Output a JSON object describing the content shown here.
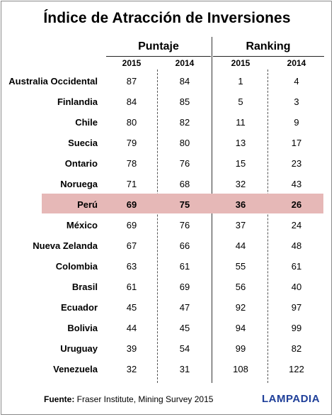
{
  "title": "Índice de Atracción de Inversiones",
  "groups": {
    "score": "Puntaje",
    "ranking": "Ranking"
  },
  "years": {
    "score_2015": "2015",
    "score_2014": "2014",
    "rank_2015": "2015",
    "rank_2014": "2014"
  },
  "rows": [
    {
      "name": "Australia Occidental",
      "s2015": "87",
      "s2014": "84",
      "r2015": "1",
      "r2014": "4"
    },
    {
      "name": "Finlandia",
      "s2015": "84",
      "s2014": "85",
      "r2015": "5",
      "r2014": "3"
    },
    {
      "name": "Chile",
      "s2015": "80",
      "s2014": "82",
      "r2015": "11",
      "r2014": "9"
    },
    {
      "name": "Suecia",
      "s2015": "79",
      "s2014": "80",
      "r2015": "13",
      "r2014": "17"
    },
    {
      "name": "Ontario",
      "s2015": "78",
      "s2014": "76",
      "r2015": "15",
      "r2014": "23"
    },
    {
      "name": "Noruega",
      "s2015": "71",
      "s2014": "68",
      "r2015": "32",
      "r2014": "43"
    },
    {
      "name": "Perú",
      "s2015": "69",
      "s2014": "75",
      "r2015": "36",
      "r2014": "26"
    },
    {
      "name": "México",
      "s2015": "69",
      "s2014": "76",
      "r2015": "37",
      "r2014": "24"
    },
    {
      "name": "Nueva Zelanda",
      "s2015": "67",
      "s2014": "66",
      "r2015": "44",
      "r2014": "48"
    },
    {
      "name": "Colombia",
      "s2015": "63",
      "s2014": "61",
      "r2015": "55",
      "r2014": "61"
    },
    {
      "name": "Brasil",
      "s2015": "61",
      "s2014": "69",
      "r2015": "56",
      "r2014": "40"
    },
    {
      "name": "Ecuador",
      "s2015": "45",
      "s2014": "47",
      "r2015": "92",
      "r2014": "97"
    },
    {
      "name": "Bolivia",
      "s2015": "44",
      "s2014": "45",
      "r2015": "94",
      "r2014": "99"
    },
    {
      "name": "Uruguay",
      "s2015": "39",
      "s2014": "54",
      "r2015": "99",
      "r2014": "82"
    },
    {
      "name": "Venezuela",
      "s2015": "32",
      "s2014": "31",
      "r2015": "108",
      "r2014": "122"
    }
  ],
  "highlight_color": "#e6b8b7",
  "footer": {
    "source_label": "Fuente:",
    "source_text": " Fraser Institute, Mining Survey 2015",
    "brand": "LAMPADIA",
    "brand_color": "#1f3f99"
  }
}
